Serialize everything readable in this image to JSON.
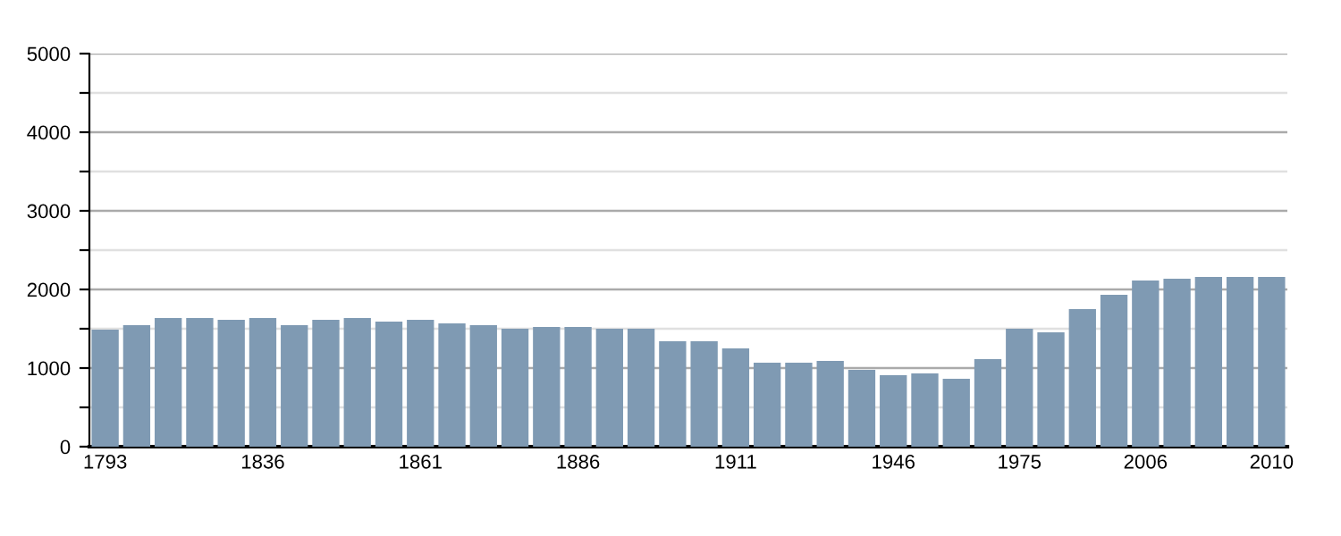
{
  "chart_data": {
    "type": "bar",
    "categories": [
      "1793",
      null,
      null,
      null,
      null,
      "1836",
      null,
      null,
      null,
      null,
      "1861",
      null,
      null,
      null,
      null,
      "1886",
      null,
      null,
      null,
      null,
      "1911",
      null,
      null,
      null,
      null,
      "1946",
      null,
      null,
      null,
      "1975",
      null,
      null,
      null,
      "2006",
      null,
      null,
      null,
      "2010"
    ],
    "values": [
      1490,
      1545,
      1636,
      1636,
      1614,
      1636,
      1545,
      1614,
      1636,
      1591,
      1614,
      1568,
      1545,
      1500,
      1523,
      1523,
      1500,
      1500,
      1341,
      1341,
      1250,
      1068,
      1068,
      1091,
      977,
      909,
      932,
      864,
      1114,
      1500,
      1455,
      1750,
      1932,
      2114,
      2136,
      2159,
      2159,
      2159
    ],
    "color": "#7f9ab3",
    "ylim": [
      0,
      5000
    ],
    "yticks": [
      0,
      {
        "value": 500,
        "label": null
      },
      1000,
      {
        "value": 1500,
        "label": null
      },
      2000,
      {
        "value": 2500,
        "label": null
      },
      3000,
      {
        "value": 3500,
        "label": null
      },
      4000,
      {
        "value": 4500,
        "label": null
      },
      5000
    ],
    "grid": "y"
  }
}
